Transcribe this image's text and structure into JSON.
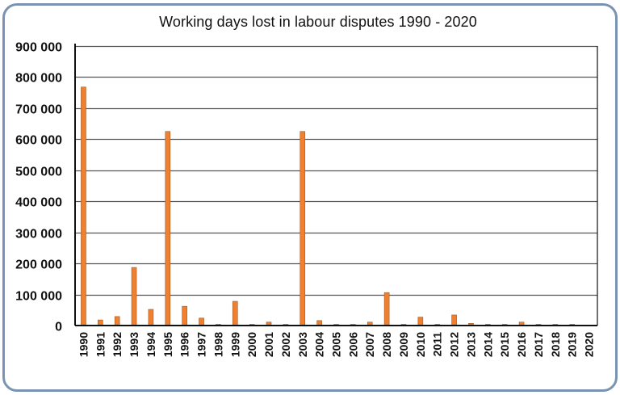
{
  "chart_data": {
    "type": "bar",
    "title": "Working days lost in labour disputes 1990 - 2020",
    "xlabel": "",
    "ylabel": "",
    "ylim": [
      0,
      900000
    ],
    "yticks": [
      0,
      100000,
      200000,
      300000,
      400000,
      500000,
      600000,
      700000,
      800000,
      900000
    ],
    "ytick_labels": [
      "0",
      "100 000",
      "200 000",
      "300 000",
      "400 000",
      "500 000",
      "600 000",
      "700 000",
      "800 000",
      "900 000"
    ],
    "grid": true,
    "legend": null,
    "categories": [
      "1990",
      "1991",
      "1992",
      "1993",
      "1994",
      "1995",
      "1996",
      "1997",
      "1998",
      "1999",
      "2000",
      "2001",
      "2002",
      "2003",
      "2004",
      "2005",
      "2006",
      "2007",
      "2008",
      "2009",
      "2010",
      "2011",
      "2012",
      "2013",
      "2014",
      "2015",
      "2016",
      "2017",
      "2018",
      "2019",
      "2020"
    ],
    "values": [
      768000,
      18000,
      29000,
      187000,
      52000,
      625000,
      62000,
      24000,
      3000,
      78000,
      3000,
      11000,
      3000,
      625000,
      16000,
      2000,
      2000,
      11000,
      106000,
      2000,
      27000,
      2000,
      34000,
      7000,
      3000,
      3000,
      11000,
      3000,
      3000,
      3000,
      0
    ],
    "colors": {
      "bar": "#f08030",
      "bar_edge": "#9c5a2a",
      "grid": "#555555",
      "axis": "#111111",
      "frame": "#7b93b3"
    }
  }
}
